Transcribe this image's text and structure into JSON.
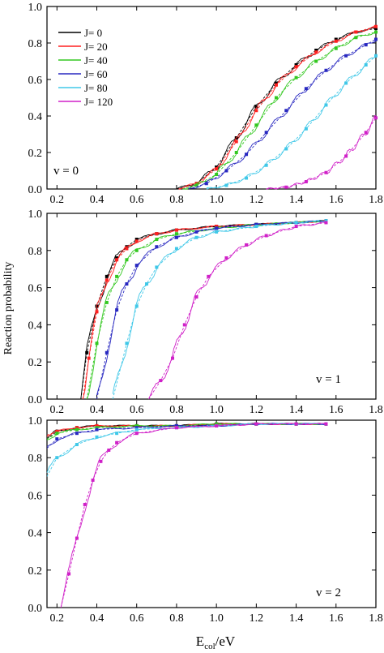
{
  "figure": {
    "ylabel": "Reaction probability",
    "xlabel_main": "E",
    "xlabel_sub": "col",
    "xlabel_unit": "/eV"
  },
  "legend": {
    "entries": [
      {
        "label": "J= 0",
        "color": "#000000"
      },
      {
        "label": "J= 20",
        "color": "#ff2020"
      },
      {
        "label": "J= 40",
        "color": "#33c820"
      },
      {
        "label": "J= 60",
        "color": "#2828c0"
      },
      {
        "label": "J= 80",
        "color": "#40c8e8"
      },
      {
        "label": "J= 120",
        "color": "#d020c8"
      }
    ]
  },
  "chart_data": [
    {
      "type": "line",
      "panel_label": "v = 0",
      "xlim": [
        0.15,
        1.8
      ],
      "ylim": [
        0.0,
        1.0
      ],
      "xticks": [
        "0.2",
        "0.4",
        "0.6",
        "0.8",
        "1.0",
        "1.2",
        "1.4",
        "1.6",
        "1.8"
      ],
      "yticks": [
        "0.0",
        "0.2",
        "0.4",
        "0.6",
        "0.8",
        "1.0"
      ],
      "series": [
        {
          "name": "J= 0",
          "color": "#000000",
          "x": [
            0.8,
            0.9,
            1.0,
            1.1,
            1.2,
            1.3,
            1.4,
            1.5,
            1.6,
            1.7,
            1.8
          ],
          "y": [
            0.0,
            0.03,
            0.12,
            0.28,
            0.45,
            0.58,
            0.68,
            0.76,
            0.82,
            0.86,
            0.88
          ]
        },
        {
          "name": "J= 20",
          "color": "#ff2020",
          "x": [
            0.81,
            0.9,
            1.0,
            1.1,
            1.2,
            1.3,
            1.4,
            1.5,
            1.6,
            1.7,
            1.8
          ],
          "y": [
            0.0,
            0.03,
            0.11,
            0.26,
            0.43,
            0.57,
            0.67,
            0.75,
            0.81,
            0.86,
            0.89
          ]
        },
        {
          "name": "J= 40",
          "color": "#33c820",
          "x": [
            0.83,
            0.9,
            1.0,
            1.1,
            1.2,
            1.3,
            1.4,
            1.5,
            1.6,
            1.7,
            1.8
          ],
          "y": [
            0.0,
            0.02,
            0.08,
            0.2,
            0.35,
            0.5,
            0.61,
            0.7,
            0.77,
            0.83,
            0.86
          ]
        },
        {
          "name": "J= 60",
          "color": "#2828c0",
          "x": [
            0.86,
            0.95,
            1.05,
            1.15,
            1.25,
            1.35,
            1.45,
            1.55,
            1.65,
            1.75,
            1.8
          ],
          "y": [
            0.0,
            0.03,
            0.1,
            0.19,
            0.31,
            0.43,
            0.55,
            0.65,
            0.73,
            0.79,
            0.82
          ]
        },
        {
          "name": "J= 80",
          "color": "#40c8e8",
          "x": [
            0.95,
            1.05,
            1.15,
            1.25,
            1.35,
            1.45,
            1.55,
            1.65,
            1.75,
            1.8
          ],
          "y": [
            0.0,
            0.02,
            0.06,
            0.13,
            0.22,
            0.33,
            0.46,
            0.58,
            0.68,
            0.73
          ]
        },
        {
          "name": "J= 120",
          "color": "#d020c8",
          "x": [
            1.25,
            1.35,
            1.45,
            1.55,
            1.65,
            1.75,
            1.8
          ],
          "y": [
            0.0,
            0.01,
            0.04,
            0.09,
            0.18,
            0.31,
            0.39
          ]
        }
      ]
    },
    {
      "type": "line",
      "panel_label": "v = 1",
      "xlim": [
        0.15,
        1.8
      ],
      "ylim": [
        0.0,
        1.0
      ],
      "xticks": [
        "0.2",
        "0.4",
        "0.6",
        "0.8",
        "1.0",
        "1.2",
        "1.4",
        "1.6",
        "1.8"
      ],
      "yticks": [
        "0.0",
        "0.2",
        "0.4",
        "0.6",
        "0.8",
        "1.0"
      ],
      "series": [
        {
          "name": "J= 0",
          "color": "#000000",
          "x": [
            0.32,
            0.35,
            0.4,
            0.45,
            0.5,
            0.55,
            0.6,
            0.7,
            0.8,
            1.0,
            1.2,
            1.4,
            1.55
          ],
          "y": [
            0.0,
            0.25,
            0.5,
            0.66,
            0.76,
            0.82,
            0.86,
            0.89,
            0.91,
            0.93,
            0.94,
            0.95,
            0.96
          ]
        },
        {
          "name": "J= 20",
          "color": "#ff2020",
          "x": [
            0.33,
            0.36,
            0.4,
            0.45,
            0.5,
            0.55,
            0.6,
            0.7,
            0.8,
            1.0,
            1.2,
            1.4,
            1.55
          ],
          "y": [
            0.0,
            0.22,
            0.47,
            0.64,
            0.75,
            0.81,
            0.85,
            0.89,
            0.91,
            0.93,
            0.94,
            0.95,
            0.96
          ]
        },
        {
          "name": "J= 40",
          "color": "#33c820",
          "x": [
            0.35,
            0.4,
            0.45,
            0.5,
            0.55,
            0.6,
            0.7,
            0.8,
            1.0,
            1.2,
            1.4,
            1.55
          ],
          "y": [
            0.0,
            0.3,
            0.52,
            0.66,
            0.75,
            0.8,
            0.86,
            0.89,
            0.92,
            0.94,
            0.95,
            0.96
          ]
        },
        {
          "name": "J= 60",
          "color": "#2828c0",
          "x": [
            0.4,
            0.45,
            0.5,
            0.55,
            0.6,
            0.7,
            0.8,
            0.9,
            1.0,
            1.2,
            1.4,
            1.55
          ],
          "y": [
            0.0,
            0.25,
            0.48,
            0.62,
            0.72,
            0.82,
            0.87,
            0.9,
            0.92,
            0.94,
            0.95,
            0.96
          ]
        },
        {
          "name": "J= 80",
          "color": "#40c8e8",
          "x": [
            0.48,
            0.55,
            0.6,
            0.65,
            0.7,
            0.8,
            0.9,
            1.0,
            1.2,
            1.4,
            1.55
          ],
          "y": [
            0.0,
            0.3,
            0.5,
            0.62,
            0.71,
            0.81,
            0.87,
            0.9,
            0.93,
            0.95,
            0.96
          ]
        },
        {
          "name": "J= 120",
          "color": "#d020c8",
          "x": [
            0.66,
            0.72,
            0.78,
            0.84,
            0.9,
            0.96,
            1.05,
            1.15,
            1.25,
            1.4,
            1.55
          ],
          "y": [
            0.0,
            0.1,
            0.22,
            0.4,
            0.55,
            0.66,
            0.76,
            0.83,
            0.88,
            0.93,
            0.95
          ]
        }
      ]
    },
    {
      "type": "line",
      "panel_label": "v = 2",
      "xlim": [
        0.15,
        1.8
      ],
      "ylim": [
        0.0,
        1.0
      ],
      "xticks": [
        "0.2",
        "0.4",
        "0.6",
        "0.8",
        "1.0",
        "1.2",
        "1.4",
        "1.6",
        "1.8"
      ],
      "yticks": [
        "0.0",
        "0.2",
        "0.4",
        "0.6",
        "0.8",
        "1.0"
      ],
      "series": [
        {
          "name": "J= 0",
          "color": "#000000",
          "x": [
            0.15,
            0.2,
            0.3,
            0.4,
            0.6,
            0.8,
            1.0,
            1.2,
            1.4,
            1.55
          ],
          "y": [
            0.9,
            0.94,
            0.96,
            0.97,
            0.97,
            0.97,
            0.98,
            0.98,
            0.98,
            0.98
          ]
        },
        {
          "name": "J= 20",
          "color": "#ff2020",
          "x": [
            0.15,
            0.2,
            0.3,
            0.4,
            0.6,
            0.8,
            1.0,
            1.2,
            1.4,
            1.55
          ],
          "y": [
            0.92,
            0.94,
            0.96,
            0.97,
            0.97,
            0.97,
            0.98,
            0.98,
            0.98,
            0.98
          ]
        },
        {
          "name": "J= 40",
          "color": "#33c820",
          "x": [
            0.15,
            0.2,
            0.3,
            0.4,
            0.6,
            0.8,
            1.0,
            1.2,
            1.4,
            1.55
          ],
          "y": [
            0.9,
            0.93,
            0.95,
            0.96,
            0.97,
            0.97,
            0.98,
            0.98,
            0.98,
            0.98
          ]
        },
        {
          "name": "J= 60",
          "color": "#2828c0",
          "x": [
            0.15,
            0.2,
            0.3,
            0.4,
            0.6,
            0.8,
            1.0,
            1.2,
            1.4,
            1.55
          ],
          "y": [
            0.85,
            0.9,
            0.93,
            0.95,
            0.96,
            0.97,
            0.97,
            0.98,
            0.98,
            0.98
          ]
        },
        {
          "name": "J= 80",
          "color": "#40c8e8",
          "x": [
            0.15,
            0.2,
            0.3,
            0.4,
            0.5,
            0.6,
            0.8,
            1.0,
            1.2,
            1.4,
            1.55
          ],
          "y": [
            0.7,
            0.8,
            0.87,
            0.91,
            0.93,
            0.95,
            0.96,
            0.97,
            0.98,
            0.98,
            0.98
          ]
        },
        {
          "name": "J= 120",
          "color": "#d020c8",
          "x": [
            0.22,
            0.26,
            0.3,
            0.34,
            0.38,
            0.42,
            0.46,
            0.5,
            0.6,
            0.8,
            1.0,
            1.2,
            1.4,
            1.55
          ],
          "y": [
            0.0,
            0.18,
            0.37,
            0.55,
            0.68,
            0.78,
            0.84,
            0.88,
            0.93,
            0.96,
            0.97,
            0.98,
            0.98,
            0.98
          ]
        }
      ]
    }
  ]
}
